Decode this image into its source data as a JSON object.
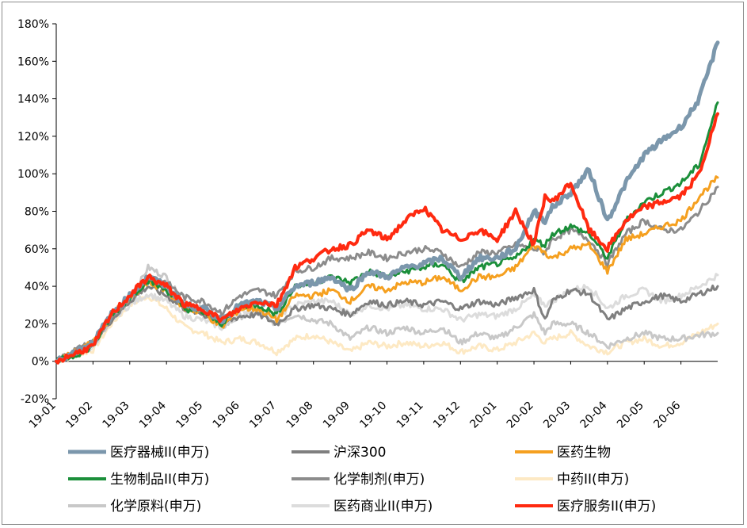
{
  "chart_data": {
    "type": "line",
    "title": "",
    "xlabel": "",
    "ylabel": "",
    "ylim": [
      -20,
      180
    ],
    "yticks": [
      "-20%",
      "0%",
      "20%",
      "40%",
      "60%",
      "80%",
      "100%",
      "120%",
      "140%",
      "160%",
      "180%"
    ],
    "x_ticks": [
      "19-01",
      "19-02",
      "19-03",
      "19-04",
      "19-05",
      "19-06",
      "19-07",
      "19-08",
      "19-09",
      "19-10",
      "19-11",
      "19-12",
      "20-01",
      "20-02",
      "20-03",
      "20-04",
      "20-05",
      "20-06"
    ],
    "x_range": [
      0,
      18
    ],
    "legend_position": "bottom",
    "series": [
      {
        "name": "医疗器械II(申万)",
        "color": "#7b97ac",
        "width": 5,
        "x": [
          0,
          0.5,
          1,
          1.5,
          2,
          2.5,
          3,
          3.5,
          4,
          4.5,
          5,
          5.5,
          6,
          6.5,
          7,
          7.5,
          8,
          8.5,
          9,
          9.5,
          10,
          10.5,
          11,
          11.5,
          12,
          12.5,
          13,
          13.3,
          13.5,
          14,
          14.5,
          15,
          15.5,
          16,
          16.5,
          17,
          17.5,
          18
        ],
        "values": [
          0,
          5,
          10,
          25,
          35,
          45,
          40,
          30,
          28,
          22,
          30,
          32,
          28,
          40,
          42,
          45,
          38,
          48,
          45,
          50,
          52,
          55,
          45,
          55,
          55,
          60,
          80,
          75,
          82,
          90,
          102,
          75,
          95,
          110,
          118,
          125,
          140,
          170
        ]
      },
      {
        "name": "沪深300",
        "color": "#7f7f7f",
        "width": 3,
        "x": [
          0,
          0.5,
          1,
          1.5,
          2,
          2.5,
          3,
          3.5,
          4,
          4.5,
          5,
          5.5,
          6,
          6.5,
          7,
          7.5,
          8,
          8.5,
          9,
          9.5,
          10,
          10.5,
          11,
          11.5,
          12,
          12.5,
          13,
          13.3,
          13.5,
          14,
          14.5,
          15,
          15.5,
          16,
          16.5,
          17,
          17.5,
          18
        ],
        "values": [
          0,
          5,
          10,
          22,
          32,
          40,
          35,
          28,
          25,
          20,
          24,
          25,
          20,
          28,
          30,
          28,
          25,
          32,
          30,
          32,
          30,
          32,
          28,
          32,
          30,
          34,
          38,
          22,
          32,
          38,
          36,
          22,
          28,
          32,
          35,
          32,
          36,
          40
        ]
      },
      {
        "name": "医药生物",
        "color": "#f5a020",
        "width": 3,
        "x": [
          0,
          0.5,
          1,
          1.5,
          2,
          2.5,
          3,
          3.5,
          4,
          4.5,
          5,
          5.5,
          6,
          6.5,
          7,
          7.5,
          8,
          8.5,
          9,
          9.5,
          10,
          10.5,
          11,
          11.5,
          12,
          12.5,
          13,
          13.3,
          13.5,
          14,
          14.5,
          15,
          15.5,
          16,
          16.5,
          17,
          17.5,
          18
        ],
        "values": [
          0,
          5,
          10,
          25,
          33,
          42,
          38,
          28,
          26,
          18,
          28,
          28,
          22,
          35,
          35,
          38,
          32,
          40,
          38,
          42,
          42,
          45,
          38,
          45,
          45,
          50,
          62,
          58,
          55,
          60,
          62,
          48,
          65,
          68,
          72,
          75,
          88,
          98
        ]
      },
      {
        "name": "生物制品II(申万)",
        "color": "#1b8f3a",
        "width": 3,
        "x": [
          0,
          0.5,
          1,
          1.5,
          2,
          2.5,
          3,
          3.5,
          4,
          4.5,
          5,
          5.5,
          6,
          6.5,
          7,
          7.5,
          8,
          8.5,
          9,
          9.5,
          10,
          10.5,
          11,
          11.5,
          12,
          12.5,
          13,
          13.3,
          13.5,
          14,
          14.5,
          15,
          15.5,
          16,
          16.5,
          17,
          17.5,
          18
        ],
        "values": [
          0,
          3,
          8,
          24,
          34,
          43,
          38,
          28,
          26,
          20,
          30,
          30,
          25,
          40,
          42,
          45,
          42,
          48,
          45,
          48,
          50,
          52,
          42,
          50,
          52,
          55,
          65,
          62,
          68,
          72,
          68,
          55,
          75,
          85,
          90,
          95,
          105,
          138
        ]
      },
      {
        "name": "化学制剂(申万)",
        "color": "#8c8c8c",
        "width": 3,
        "x": [
          0,
          0.5,
          1,
          1.5,
          2,
          2.5,
          3,
          3.5,
          4,
          4.5,
          5,
          5.5,
          6,
          6.5,
          7,
          7.5,
          8,
          8.5,
          9,
          9.5,
          10,
          10.5,
          11,
          11.5,
          12,
          12.5,
          13,
          13.3,
          13.5,
          14,
          14.5,
          15,
          15.5,
          16,
          16.5,
          17,
          17.5,
          18
        ],
        "values": [
          0,
          6,
          10,
          22,
          34,
          46,
          42,
          34,
          32,
          26,
          35,
          38,
          35,
          48,
          50,
          55,
          55,
          58,
          55,
          58,
          60,
          58,
          50,
          58,
          58,
          62,
          60,
          58,
          65,
          70,
          65,
          52,
          68,
          75,
          70,
          70,
          80,
          93
        ]
      },
      {
        "name": "中药II(申万)",
        "color": "#fde9c4",
        "width": 3,
        "x": [
          0,
          0.5,
          1,
          1.5,
          2,
          2.5,
          3,
          3.5,
          4,
          4.5,
          5,
          5.5,
          6,
          6.5,
          7,
          7.5,
          8,
          8.5,
          9,
          9.5,
          10,
          10.5,
          11,
          11.5,
          12,
          12.5,
          13,
          13.3,
          13.5,
          14,
          14.5,
          15,
          15.5,
          16,
          16.5,
          17,
          17.5,
          18
        ],
        "values": [
          0,
          3,
          6,
          20,
          30,
          35,
          28,
          18,
          15,
          10,
          12,
          10,
          5,
          12,
          14,
          10,
          5,
          10,
          8,
          10,
          8,
          10,
          5,
          8,
          6,
          10,
          15,
          10,
          12,
          15,
          8,
          5,
          10,
          12,
          8,
          10,
          15,
          20
        ]
      },
      {
        "name": "化学原料(申万)",
        "color": "#c8c8c8",
        "width": 3,
        "x": [
          0,
          0.5,
          1,
          1.5,
          2,
          2.5,
          3,
          3.5,
          4,
          4.5,
          5,
          5.5,
          6,
          6.5,
          7,
          7.5,
          8,
          8.5,
          9,
          9.5,
          10,
          10.5,
          11,
          11.5,
          12,
          12.5,
          13,
          13.3,
          13.5,
          14,
          14.5,
          15,
          15.5,
          16,
          16.5,
          17,
          17.5,
          18
        ],
        "values": [
          0,
          4,
          8,
          22,
          32,
          50,
          45,
          30,
          28,
          18,
          24,
          25,
          20,
          25,
          22,
          20,
          12,
          18,
          15,
          18,
          15,
          18,
          10,
          15,
          12,
          18,
          25,
          15,
          20,
          20,
          15,
          8,
          12,
          15,
          12,
          12,
          14,
          15
        ]
      },
      {
        "name": "医药商业II(申万)",
        "color": "#dcdcdc",
        "width": 3,
        "x": [
          0,
          0.5,
          1,
          1.5,
          2,
          2.5,
          3,
          3.5,
          4,
          4.5,
          5,
          5.5,
          6,
          6.5,
          7,
          7.5,
          8,
          8.5,
          9,
          9.5,
          10,
          10.5,
          11,
          11.5,
          12,
          12.5,
          13,
          13.3,
          13.5,
          14,
          14.5,
          15,
          15.5,
          16,
          16.5,
          17,
          17.5,
          18
        ],
        "values": [
          0,
          4,
          8,
          22,
          30,
          36,
          32,
          24,
          22,
          18,
          26,
          28,
          24,
          30,
          32,
          32,
          25,
          30,
          28,
          30,
          28,
          28,
          22,
          25,
          24,
          28,
          35,
          30,
          32,
          38,
          40,
          28,
          35,
          38,
          32,
          35,
          40,
          46
        ]
      },
      {
        "name": "医疗服务II(申万)",
        "color": "#ff2a10",
        "width": 4,
        "x": [
          0,
          0.5,
          1,
          1.5,
          2,
          2.5,
          3,
          3.5,
          4,
          4.5,
          5,
          5.5,
          6,
          6.5,
          7,
          7.5,
          8,
          8.5,
          9,
          9.5,
          10,
          10.5,
          11,
          11.5,
          12,
          12.5,
          13,
          13.3,
          13.5,
          14,
          14.5,
          15,
          15.5,
          16,
          16.5,
          17,
          17.5,
          18
        ],
        "values": [
          0,
          4,
          8,
          25,
          35,
          45,
          40,
          30,
          28,
          22,
          28,
          32,
          30,
          50,
          55,
          60,
          62,
          70,
          65,
          75,
          82,
          70,
          65,
          70,
          65,
          80,
          62,
          88,
          85,
          95,
          70,
          60,
          75,
          82,
          85,
          88,
          100,
          132
        ]
      }
    ]
  }
}
